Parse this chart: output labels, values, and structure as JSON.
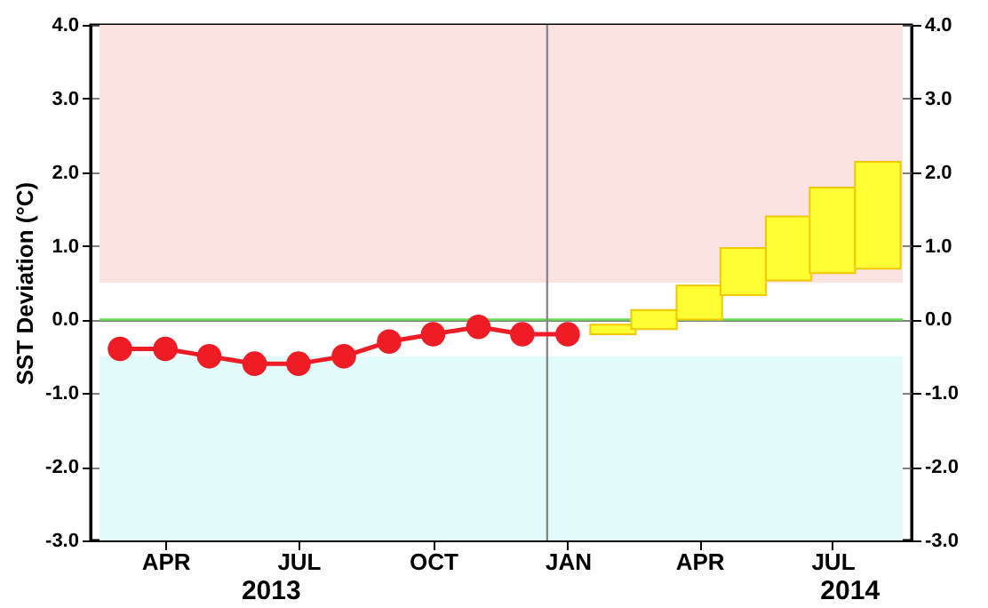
{
  "chart_data": {
    "type": "line",
    "ylabel": "SST Deviation (°C)",
    "xlim": [
      "2013-03-01",
      "2014-09-01"
    ],
    "xticks": [
      {
        "value": "2013-04-15",
        "label": "APR"
      },
      {
        "value": "2013-07-15",
        "label": "JUL"
      },
      {
        "value": "2013-10-15",
        "label": "OCT"
      },
      {
        "value": "2014-01-15",
        "label": "JAN"
      },
      {
        "value": "2014-04-15",
        "label": "APR"
      },
      {
        "value": "2014-07-15",
        "label": "JUL"
      }
    ],
    "ylim": [
      -3,
      4
    ],
    "yticks": [
      {
        "value": -3,
        "label": "-3.0"
      },
      {
        "value": -2,
        "label": "-2.0"
      },
      {
        "value": -1,
        "label": "-1.0"
      },
      {
        "value": 0,
        "label": "0.0"
      },
      {
        "value": 1,
        "label": "1.0"
      },
      {
        "value": 2,
        "label": "2.0"
      },
      {
        "value": 3,
        "label": "3.0"
      },
      {
        "value": 4,
        "label": "4.0"
      }
    ],
    "y2lim": [
      -3,
      4
    ],
    "y2ticks": [
      {
        "value": -3,
        "label": "-3.0"
      },
      {
        "value": -2,
        "label": "-2.0"
      },
      {
        "value": -1,
        "label": "-1.0"
      },
      {
        "value": 0,
        "label": "0.0"
      },
      {
        "value": 1,
        "label": "1.0"
      },
      {
        "value": 2,
        "label": "2.0"
      },
      {
        "value": 3,
        "label": "3.0"
      },
      {
        "value": 4,
        "label": "4.0"
      }
    ],
    "series": [
      {
        "color": "#ee1c24",
        "x": [
          "2013-03-15",
          "2013-04-15",
          "2013-05-15",
          "2013-06-15",
          "2013-07-15",
          "2013-08-15",
          "2013-09-15",
          "2013-10-15",
          "2013-11-15",
          "2013-12-15",
          "2014-01-15"
        ],
        "values": [
          -0.4,
          -0.4,
          -0.5,
          -0.6,
          -0.6,
          -0.5,
          -0.3,
          -0.2,
          -0.1,
          -0.2,
          -0.2
        ]
      },
      {
        "type": "bar",
        "color": "#ffff33",
        "x": [
          "2014-02-15",
          "2014-03-15",
          "2014-04-15",
          "2014-05-15",
          "2014-06-15",
          "2014-07-15",
          "2014-08-15"
        ],
        "base": [
          -0.2,
          -0.13,
          0,
          0.33,
          0.53,
          0.63,
          0.69
        ],
        "values": [
          0.13,
          0.26,
          0.46,
          0.64,
          0.87,
          1.16,
          1.45
        ]
      }
    ],
    "bands": [
      {
        "axis": "y",
        "from": 0.5,
        "to": 4,
        "color": "#fde2e2"
      },
      {
        "axis": "y",
        "from": -3,
        "to": -0.5,
        "color": "#e2fcfc"
      }
    ],
    "ref_lines": [
      {
        "axis": "y",
        "value": 0,
        "color": "#66dd55"
      },
      {
        "axis": "x",
        "value": "2014-01-01",
        "color": "#888888"
      }
    ],
    "grid": "y",
    "marker": "circle",
    "line_style": "solid",
    "annotations": [
      "2013",
      "2014"
    ]
  }
}
